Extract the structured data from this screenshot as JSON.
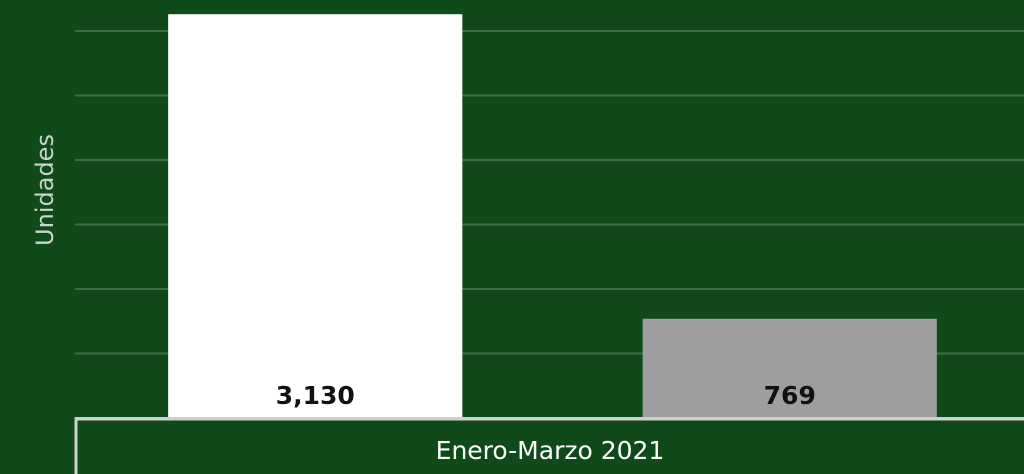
{
  "chart_data": {
    "type": "bar",
    "xlabel": "Enero-Marzo 2021",
    "ylabel": "Unidades",
    "categories": [
      null,
      null
    ],
    "values": [
      3130,
      769
    ],
    "value_labels": [
      "3,130",
      "769"
    ],
    "colors": [
      "#ffffff",
      "#9e9e9e"
    ],
    "ylim": [
      0,
      3240
    ],
    "yticks": [
      0,
      500,
      1000,
      1500,
      2000,
      2500,
      3000
    ],
    "grid": true
  }
}
